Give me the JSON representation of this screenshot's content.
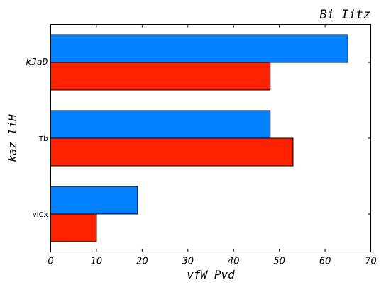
{
  "chart_data": {
    "type": "bar",
    "orientation": "horizontal",
    "title": "Bi Iitz",
    "xlabel": "vfW Pvd",
    "ylabel": "kaz liH",
    "categories": [
      "vlCx",
      "Tb",
      "kJaD"
    ],
    "series": [
      {
        "color": "#ff2200",
        "values": [
          10,
          53,
          48
        ]
      },
      {
        "color": "#0080ff",
        "values": [
          19,
          48,
          65
        ]
      }
    ],
    "xlim": [
      0,
      70
    ],
    "xticks": [
      0,
      10,
      20,
      30,
      40,
      50,
      60,
      70
    ],
    "grid": false,
    "legend": "none"
  }
}
